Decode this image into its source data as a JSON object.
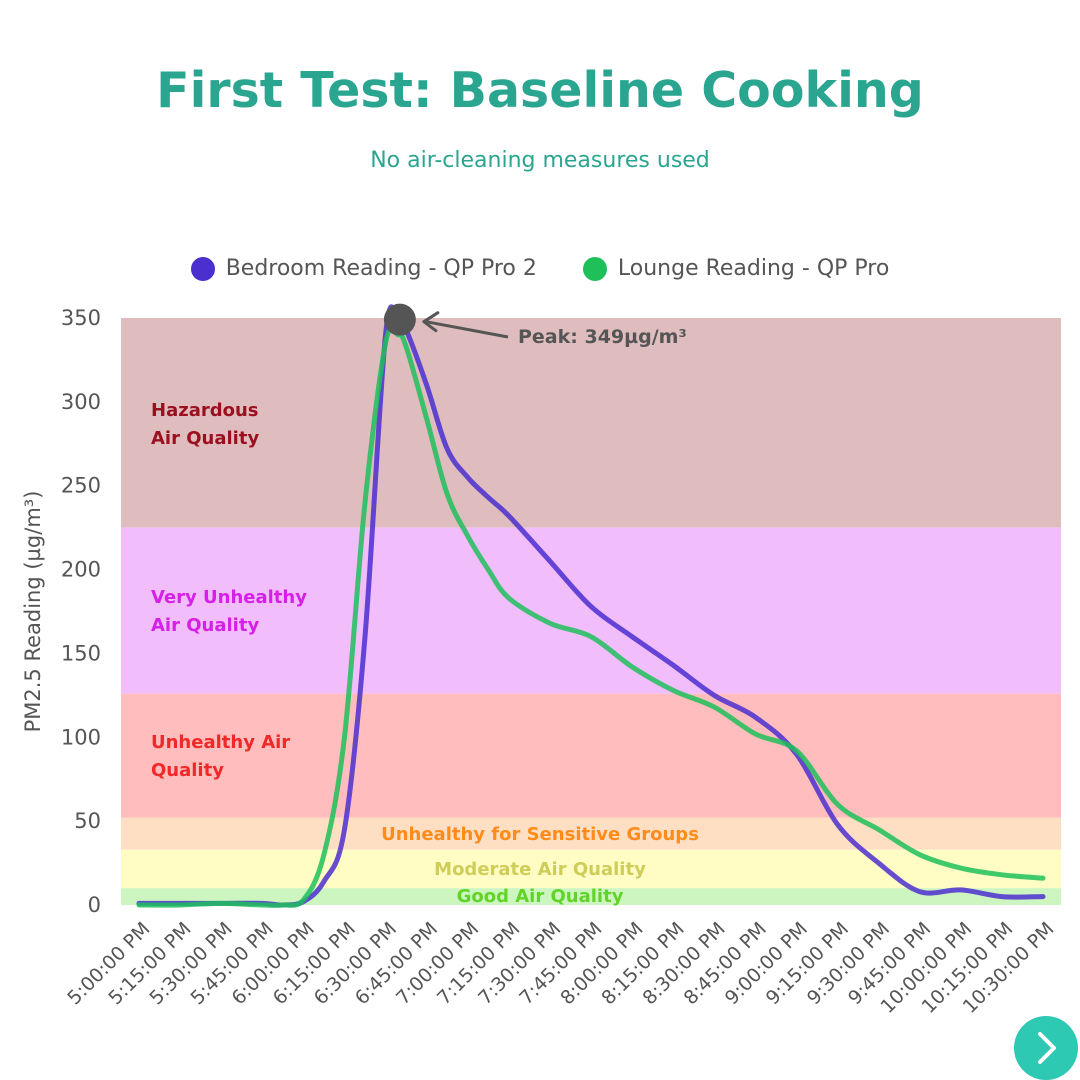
{
  "title": "First Test: Baseline Cooking",
  "subtitle": "No air-cleaning measures used",
  "colors": {
    "title": "#2aa58f",
    "bedroom": "#4b2fcf",
    "lounge": "#1fbf5a",
    "hazardous_band": "#dfbdbf",
    "very_unhealthy_band": "#f2bdfb",
    "unhealthy_band": "#ffbdbd",
    "sensitive_band": "#ffdfc4",
    "moderate_band": "#fffcc4",
    "good_band": "#cdf5c0",
    "next_button": "#2ec9b3"
  },
  "chart_data": {
    "type": "line",
    "ylabel": "PM2.5 Reading (µg/m³)",
    "xlabel": "",
    "ylim": [
      0,
      350
    ],
    "yticks": [
      0,
      50,
      100,
      150,
      200,
      250,
      300,
      350
    ],
    "categories": [
      "5:00:00 PM",
      "5:15:00 PM",
      "5:30:00 PM",
      "5:45:00 PM",
      "6:00:00 PM",
      "6:15:00 PM",
      "6:30:00 PM",
      "6:45:00 PM",
      "7:00:00 PM",
      "7:15:00 PM",
      "7:30:00 PM",
      "7:45:00 PM",
      "8:00:00 PM",
      "8:15:00 PM",
      "8:30:00 PM",
      "8:45:00 PM",
      "9:00:00 PM",
      "9:15:00 PM",
      "9:30:00 PM",
      "9:45:00 PM",
      "10:00:00 PM",
      "10:15:00 PM",
      "10:30:00 PM"
    ],
    "series": [
      {
        "name": "Bedroom Reading - QP Pro 2",
        "color": "#4b2fcf",
        "x": [
          0,
          1,
          2,
          3,
          3.5,
          4,
          4.5,
          5,
          5.5,
          6,
          6.3,
          6.5,
          7,
          7.5,
          8,
          8.5,
          9,
          10,
          11,
          12,
          13,
          14,
          15,
          16,
          17,
          18,
          19,
          20,
          21,
          22
        ],
        "values": [
          1,
          1,
          1,
          1,
          0,
          2,
          14,
          45,
          160,
          340,
          349,
          343,
          310,
          272,
          255,
          243,
          232,
          205,
          178,
          160,
          143,
          125,
          112,
          90,
          48,
          25,
          8,
          9,
          5,
          5
        ]
      },
      {
        "name": "Lounge Reading - QP Pro",
        "color": "#1fbf5a",
        "x": [
          0,
          1,
          2,
          3,
          3.5,
          4,
          4.5,
          5,
          5.5,
          6,
          6.3,
          6.5,
          7,
          7.5,
          8,
          8.5,
          9,
          10,
          11,
          12,
          13,
          14,
          15,
          16,
          17,
          18,
          19,
          20,
          21,
          22
        ],
        "values": [
          0,
          0,
          1,
          0,
          0,
          3,
          30,
          100,
          240,
          335,
          340,
          333,
          290,
          245,
          220,
          200,
          183,
          168,
          160,
          142,
          128,
          118,
          102,
          92,
          60,
          45,
          30,
          22,
          18,
          16
        ]
      }
    ],
    "bands": [
      {
        "label": "Hazardous Air Quality",
        "from": 225,
        "to": 350,
        "color": "#dfbdbf",
        "text_color": "#9b0f1f"
      },
      {
        "label": "Very Unhealthy Air Quality",
        "from": 126,
        "to": 225,
        "color": "#f2bdfb",
        "text_color": "#d61fe8"
      },
      {
        "label": "Unhealthy Air Quality",
        "from": 52,
        "to": 126,
        "color": "#ffbdbd",
        "text_color": "#f02828"
      },
      {
        "label": "Unhealthy for Sensitive Groups",
        "from": 33,
        "to": 52,
        "color": "#ffdfc4",
        "text_color": "#ff8c1a"
      },
      {
        "label": "Moderate Air Quality",
        "from": 10,
        "to": 33,
        "color": "#fffcc4",
        "text_color": "#cfcd5a"
      },
      {
        "label": "Good Air Quality",
        "from": 0,
        "to": 10,
        "color": "#cdf5c0",
        "text_color": "#62d427"
      }
    ],
    "annotation": {
      "text": "Peak: 349µg/m³",
      "x": 6.3,
      "y": 349
    },
    "grid": false,
    "legend_position": "top-center"
  },
  "nav": {
    "next_icon": "chevron-right-icon"
  }
}
